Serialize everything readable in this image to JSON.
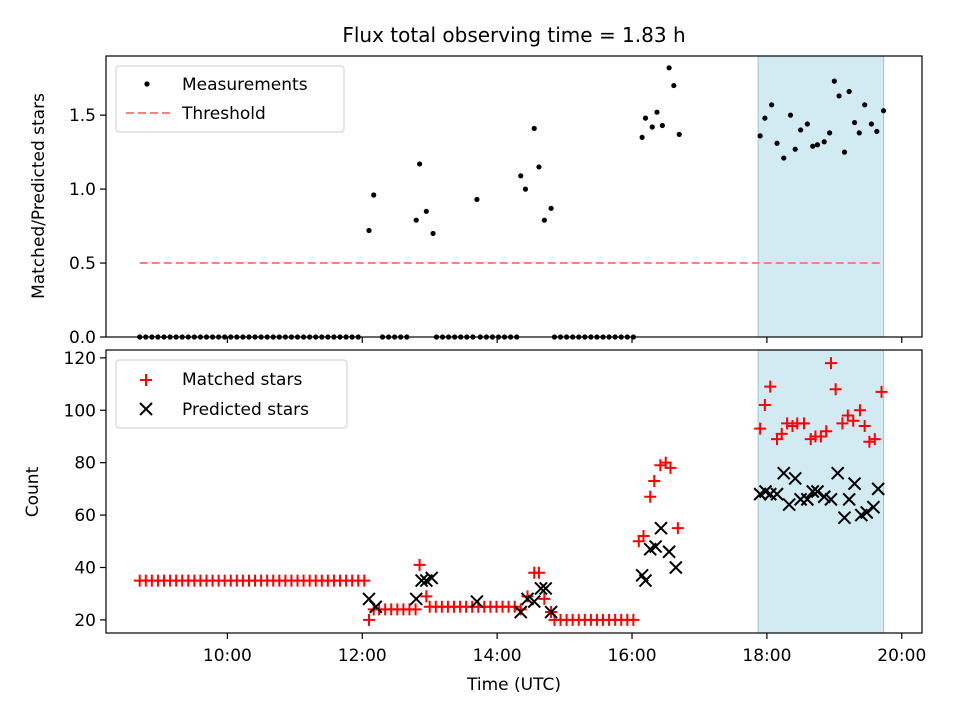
{
  "chart_data": [
    {
      "type": "scatter",
      "panel": "top",
      "title": "Flux total observing time = 1.83 h",
      "xlabel": "",
      "ylabel": "Matched/Predicted stars",
      "xlim": [
        8.2,
        20.3
      ],
      "ylim": [
        0,
        1.9
      ],
      "yticks": [
        0.0,
        0.5,
        1.0,
        1.5
      ],
      "ytick_labels": [
        "0.0",
        "0.5",
        "1.0",
        "1.5"
      ],
      "xticks": [
        10,
        12,
        14,
        16,
        18,
        20
      ],
      "highlight_span": [
        17.87,
        19.73
      ],
      "legend": {
        "position": "top-left",
        "entries": [
          "Measurements",
          "Threshold"
        ]
      },
      "colors": {
        "measurements": "#000000",
        "threshold": "#ff7f7f",
        "span": "#add8e6"
      },
      "series": [
        {
          "name": "Measurements",
          "marker": "dot",
          "zero_runs": [
            [
              8.7,
              12.0,
              0.09
            ],
            [
              12.3,
              12.7,
              0.09
            ],
            [
              13.1,
              13.65,
              0.09
            ],
            [
              13.75,
              14.3,
              0.09
            ],
            [
              14.85,
              16.05,
              0.09
            ]
          ],
          "points": [
            [
              12.1,
              0.72
            ],
            [
              12.17,
              0.96
            ],
            [
              12.8,
              0.79
            ],
            [
              12.85,
              1.17
            ],
            [
              12.95,
              0.85
            ],
            [
              13.05,
              0.7
            ],
            [
              13.7,
              0.93
            ],
            [
              14.35,
              1.09
            ],
            [
              14.42,
              1.0
            ],
            [
              14.55,
              1.41
            ],
            [
              14.62,
              1.15
            ],
            [
              14.7,
              0.79
            ],
            [
              14.8,
              0.87
            ],
            [
              16.15,
              1.35
            ],
            [
              16.2,
              1.48
            ],
            [
              16.3,
              1.42
            ],
            [
              16.37,
              1.52
            ],
            [
              16.45,
              1.43
            ],
            [
              16.55,
              1.82
            ],
            [
              16.62,
              1.7
            ],
            [
              16.7,
              1.37
            ],
            [
              17.9,
              1.36
            ],
            [
              17.97,
              1.48
            ],
            [
              18.07,
              1.57
            ],
            [
              18.15,
              1.31
            ],
            [
              18.25,
              1.21
            ],
            [
              18.35,
              1.5
            ],
            [
              18.42,
              1.27
            ],
            [
              18.5,
              1.4
            ],
            [
              18.6,
              1.44
            ],
            [
              18.68,
              1.29
            ],
            [
              18.75,
              1.3
            ],
            [
              18.85,
              1.32
            ],
            [
              18.93,
              1.38
            ],
            [
              19.0,
              1.73
            ],
            [
              19.07,
              1.63
            ],
            [
              19.15,
              1.25
            ],
            [
              19.22,
              1.66
            ],
            [
              19.3,
              1.45
            ],
            [
              19.37,
              1.38
            ],
            [
              19.45,
              1.57
            ],
            [
              19.55,
              1.44
            ],
            [
              19.63,
              1.39
            ],
            [
              19.73,
              1.53
            ]
          ]
        },
        {
          "name": "Threshold",
          "style": "dashed",
          "x": [
            8.7,
            19.73
          ],
          "y": [
            0.5,
            0.5
          ]
        }
      ]
    },
    {
      "type": "scatter",
      "panel": "bottom",
      "xlabel": "Time (UTC)",
      "ylabel": "Count",
      "xlim": [
        8.2,
        20.3
      ],
      "ylim": [
        15,
        123
      ],
      "yticks": [
        20,
        40,
        60,
        80,
        100,
        120
      ],
      "ytick_labels": [
        "20",
        "40",
        "60",
        "80",
        "100",
        "120"
      ],
      "xticks": [
        10,
        12,
        14,
        16,
        18,
        20
      ],
      "xtick_labels": [
        "10:00",
        "12:00",
        "14:00",
        "16:00",
        "18:00",
        "20:00"
      ],
      "highlight_span": [
        17.87,
        19.73
      ],
      "legend": {
        "position": "top-left",
        "entries": [
          "Matched stars",
          "Predicted stars"
        ]
      },
      "colors": {
        "matched": "#ff0000",
        "predicted": "#000000",
        "span": "#add8e6"
      },
      "series": [
        {
          "name": "Matched stars",
          "marker": "plus",
          "runs": [
            [
              8.7,
              12.05,
              0.09,
              35
            ],
            [
              12.25,
              12.8,
              0.09,
              24
            ],
            [
              13.0,
              14.3,
              0.09,
              25
            ],
            [
              14.85,
              16.05,
              0.09,
              20
            ]
          ],
          "points": [
            [
              12.1,
              20
            ],
            [
              12.17,
              24
            ],
            [
              12.85,
              41
            ],
            [
              12.95,
              29
            ],
            [
              14.35,
              24
            ],
            [
              14.45,
              29
            ],
            [
              14.55,
              38
            ],
            [
              14.62,
              38
            ],
            [
              14.7,
              28
            ],
            [
              14.8,
              23
            ],
            [
              16.1,
              50
            ],
            [
              16.17,
              52
            ],
            [
              16.27,
              67
            ],
            [
              16.33,
              73
            ],
            [
              16.42,
              79
            ],
            [
              16.5,
              80
            ],
            [
              16.57,
              78
            ],
            [
              16.68,
              55
            ],
            [
              17.9,
              93
            ],
            [
              17.97,
              102
            ],
            [
              18.05,
              109
            ],
            [
              18.15,
              89
            ],
            [
              18.22,
              91
            ],
            [
              18.3,
              95
            ],
            [
              18.38,
              94
            ],
            [
              18.45,
              95
            ],
            [
              18.55,
              95
            ],
            [
              18.65,
              89
            ],
            [
              18.72,
              90
            ],
            [
              18.8,
              90
            ],
            [
              18.88,
              92
            ],
            [
              18.95,
              118
            ],
            [
              19.02,
              108
            ],
            [
              19.12,
              95
            ],
            [
              19.2,
              98
            ],
            [
              19.28,
              96
            ],
            [
              19.38,
              100
            ],
            [
              19.45,
              94
            ],
            [
              19.52,
              88
            ],
            [
              19.6,
              89
            ],
            [
              19.7,
              107
            ]
          ]
        },
        {
          "name": "Predicted stars",
          "marker": "x",
          "points": [
            [
              12.1,
              28
            ],
            [
              12.2,
              25
            ],
            [
              12.8,
              28
            ],
            [
              12.88,
              35
            ],
            [
              12.95,
              35
            ],
            [
              13.03,
              36
            ],
            [
              13.7,
              27
            ],
            [
              14.35,
              23
            ],
            [
              14.45,
              28
            ],
            [
              14.55,
              27
            ],
            [
              14.65,
              32
            ],
            [
              14.72,
              32
            ],
            [
              14.8,
              23
            ],
            [
              16.15,
              37
            ],
            [
              16.2,
              35
            ],
            [
              16.27,
              47
            ],
            [
              16.35,
              48
            ],
            [
              16.43,
              55
            ],
            [
              16.55,
              46
            ],
            [
              16.65,
              40
            ],
            [
              17.9,
              68
            ],
            [
              17.98,
              69
            ],
            [
              18.05,
              68
            ],
            [
              18.15,
              68
            ],
            [
              18.25,
              76
            ],
            [
              18.33,
              64
            ],
            [
              18.42,
              74
            ],
            [
              18.5,
              66
            ],
            [
              18.6,
              66
            ],
            [
              18.68,
              69
            ],
            [
              18.75,
              69
            ],
            [
              18.85,
              67
            ],
            [
              18.95,
              66
            ],
            [
              19.05,
              76
            ],
            [
              19.15,
              59
            ],
            [
              19.22,
              66
            ],
            [
              19.3,
              72
            ],
            [
              19.4,
              60
            ],
            [
              19.48,
              61
            ],
            [
              19.58,
              63
            ],
            [
              19.65,
              70
            ]
          ]
        }
      ]
    }
  ]
}
